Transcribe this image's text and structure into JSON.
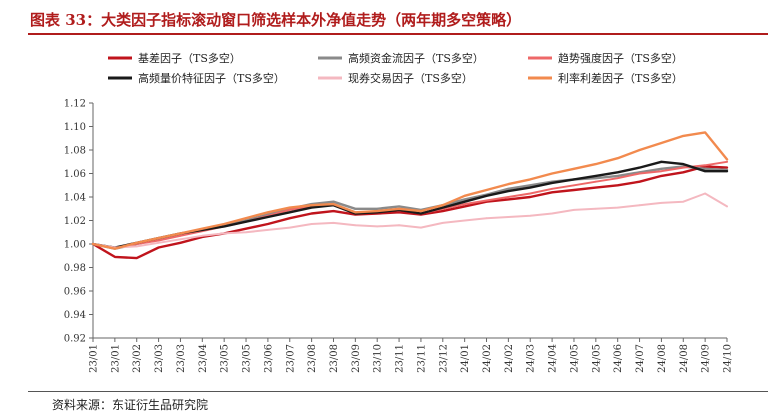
{
  "figure": {
    "title": "图表 33：大类因子指标滚动窗口筛选样本外净值走势（两年期多空策略）",
    "source": "资料来源：东证衍生品研究院"
  },
  "chart_data": {
    "type": "line",
    "title": "",
    "xlabel": "",
    "ylabel": "",
    "ylim": [
      0.92,
      1.12
    ],
    "yticks": [
      "0.92",
      "0.94",
      "0.96",
      "0.98",
      "1.00",
      "1.02",
      "1.04",
      "1.06",
      "1.08",
      "1.10",
      "1.12"
    ],
    "xticks": [
      "23/01",
      "23/01",
      "23/02",
      "23/03",
      "23/03",
      "23/04",
      "23/05",
      "23/05",
      "23/06",
      "23/07",
      "23/08",
      "23/08",
      "23/09",
      "23/10",
      "23/11",
      "23/11",
      "23/12",
      "24/01",
      "24/02",
      "24/02",
      "24/03",
      "24/04",
      "24/05",
      "24/05",
      "24/06",
      "24/07",
      "24/08",
      "24/08",
      "24/09",
      "24/10"
    ],
    "grid": false,
    "legend_position": "top",
    "series": [
      {
        "name": "基差因子（TS多空）",
        "color": "#c0141c",
        "width": 2.4,
        "values": [
          1.0,
          0.989,
          0.988,
          0.997,
          1.001,
          1.006,
          1.009,
          1.013,
          1.017,
          1.022,
          1.026,
          1.028,
          1.025,
          1.026,
          1.027,
          1.025,
          1.028,
          1.032,
          1.036,
          1.038,
          1.04,
          1.044,
          1.046,
          1.048,
          1.05,
          1.053,
          1.058,
          1.061,
          1.066,
          1.065
        ]
      },
      {
        "name": "高频资金流因子（TS多空）",
        "color": "#8a8a8a",
        "width": 2.4,
        "values": [
          1.0,
          0.996,
          1.0,
          1.004,
          1.008,
          1.012,
          1.016,
          1.02,
          1.025,
          1.03,
          1.034,
          1.036,
          1.03,
          1.03,
          1.032,
          1.029,
          1.033,
          1.038,
          1.042,
          1.047,
          1.05,
          1.053,
          1.055,
          1.056,
          1.058,
          1.061,
          1.064,
          1.066,
          1.064,
          1.063
        ]
      },
      {
        "name": "趋势强度因子（TS多空）",
        "color": "#ee6868",
        "width": 2.0,
        "values": [
          1.0,
          0.997,
          1.0,
          1.003,
          1.007,
          1.011,
          1.015,
          1.019,
          1.024,
          1.029,
          1.032,
          1.033,
          1.026,
          1.027,
          1.029,
          1.026,
          1.03,
          1.034,
          1.037,
          1.04,
          1.043,
          1.047,
          1.05,
          1.053,
          1.056,
          1.06,
          1.062,
          1.065,
          1.067,
          1.07
        ]
      },
      {
        "name": "高频量价特征因子（TS多空）",
        "color": "#1a1a1a",
        "width": 2.4,
        "values": [
          1.0,
          0.997,
          1.001,
          1.005,
          1.009,
          1.012,
          1.015,
          1.019,
          1.023,
          1.027,
          1.031,
          1.033,
          1.026,
          1.027,
          1.029,
          1.026,
          1.031,
          1.036,
          1.041,
          1.045,
          1.048,
          1.052,
          1.055,
          1.058,
          1.061,
          1.065,
          1.07,
          1.068,
          1.062,
          1.062
        ]
      },
      {
        "name": "现券交易因子（TS多空）",
        "color": "#f4b8c0",
        "width": 2.0,
        "values": [
          1.0,
          0.997,
          0.998,
          1.001,
          1.004,
          1.007,
          1.009,
          1.01,
          1.012,
          1.014,
          1.017,
          1.018,
          1.016,
          1.015,
          1.016,
          1.014,
          1.018,
          1.02,
          1.022,
          1.023,
          1.024,
          1.026,
          1.029,
          1.03,
          1.031,
          1.033,
          1.035,
          1.036,
          1.043,
          1.032
        ]
      },
      {
        "name": "利率利差因子（TS多空）",
        "color": "#f28a4e",
        "width": 2.4,
        "values": [
          1.0,
          0.996,
          1.001,
          1.005,
          1.009,
          1.013,
          1.017,
          1.022,
          1.027,
          1.031,
          1.033,
          1.034,
          1.027,
          1.028,
          1.03,
          1.028,
          1.033,
          1.041,
          1.046,
          1.051,
          1.055,
          1.06,
          1.064,
          1.068,
          1.073,
          1.08,
          1.086,
          1.092,
          1.095,
          1.072
        ]
      }
    ]
  }
}
